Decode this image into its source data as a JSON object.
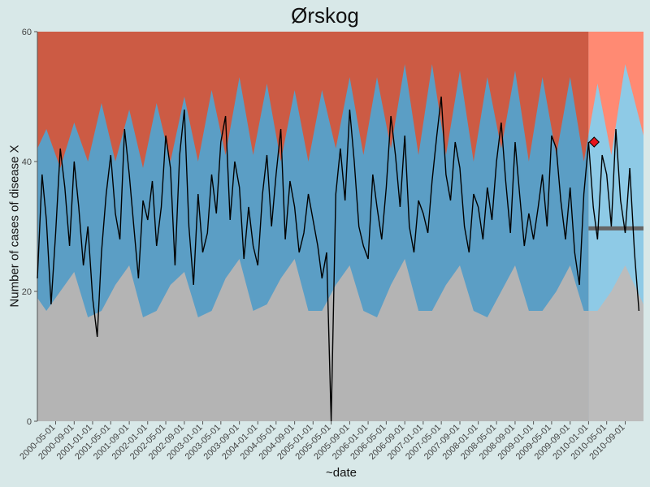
{
  "chart_data": {
    "type": "line",
    "title": "Ørskog",
    "xlabel": "~date",
    "ylabel": "Number of cases of disease X",
    "ylim": [
      0,
      60
    ],
    "xlim": [
      "2000-01-01",
      "2010-12-31"
    ],
    "y_ticks": [
      0,
      20,
      40,
      60
    ],
    "x_ticks": [
      "2000-05-01",
      "2000-09-01",
      "2001-01-01",
      "2001-05-01",
      "2001-09-01",
      "2002-01-01",
      "2002-05-01",
      "2002-09-01",
      "2003-01-01",
      "2003-05-01",
      "2003-09-01",
      "2004-01-01",
      "2004-05-01",
      "2004-09-01",
      "2005-01-01",
      "2005-05-01",
      "2005-09-01",
      "2006-01-01",
      "2006-05-01",
      "2006-09-01",
      "2007-01-01",
      "2007-05-01",
      "2007-09-01",
      "2008-01-01",
      "2008-05-01",
      "2008-09-01",
      "2009-01-01",
      "2009-05-01",
      "2009-09-01",
      "2010-01-01",
      "2010-05-01",
      "2010-09-01"
    ],
    "background_regions": {
      "baseline_period": {
        "start": "2000-01-01",
        "end": "2009-12-31"
      },
      "forecast_period": {
        "start": "2010-01-01",
        "end": "2010-12-31"
      }
    },
    "threshold_bands": {
      "low_upper": {
        "x": [
          "2000-01-01",
          "2000-03-01",
          "2000-06-01",
          "2000-09-01",
          "2000-12-01",
          "2001-03-01",
          "2001-06-01",
          "2001-09-01",
          "2001-12-01",
          "2002-03-01",
          "2002-06-01",
          "2002-09-01",
          "2002-12-01",
          "2003-03-01",
          "2003-06-01",
          "2003-09-01",
          "2003-12-01",
          "2004-03-01",
          "2004-06-01",
          "2004-09-01",
          "2004-12-01",
          "2005-03-01",
          "2005-06-01",
          "2005-09-01",
          "2005-12-01",
          "2006-03-01",
          "2006-06-01",
          "2006-09-01",
          "2006-12-01",
          "2007-03-01",
          "2007-06-01",
          "2007-09-01",
          "2007-12-01",
          "2008-03-01",
          "2008-06-01",
          "2008-09-01",
          "2008-12-01",
          "2009-03-01",
          "2009-06-01",
          "2009-09-01",
          "2009-12-01",
          "2010-03-01",
          "2010-06-01",
          "2010-09-01",
          "2010-12-31"
        ],
        "y": [
          19,
          17,
          20,
          23,
          16,
          17,
          21,
          24,
          16,
          17,
          21,
          23,
          16,
          17,
          22,
          25,
          17,
          18,
          22,
          25,
          17,
          17,
          21,
          24,
          17,
          16,
          21,
          25,
          17,
          17,
          21,
          24,
          17,
          16,
          20,
          24,
          17,
          17,
          20,
          24,
          17,
          17,
          20,
          24,
          18
        ]
      },
      "high_lower": {
        "x": [
          "2000-01-01",
          "2000-03-01",
          "2000-06-01",
          "2000-09-01",
          "2000-12-01",
          "2001-03-01",
          "2001-06-01",
          "2001-09-01",
          "2001-12-01",
          "2002-03-01",
          "2002-06-01",
          "2002-09-01",
          "2002-12-01",
          "2003-03-01",
          "2003-06-01",
          "2003-09-01",
          "2003-12-01",
          "2004-03-01",
          "2004-06-01",
          "2004-09-01",
          "2004-12-01",
          "2005-03-01",
          "2005-06-01",
          "2005-09-01",
          "2005-12-01",
          "2006-03-01",
          "2006-06-01",
          "2006-09-01",
          "2006-12-01",
          "2007-03-01",
          "2007-06-01",
          "2007-09-01",
          "2007-12-01",
          "2008-03-01",
          "2008-06-01",
          "2008-09-01",
          "2008-12-01",
          "2009-03-01",
          "2009-06-01",
          "2009-09-01",
          "2009-12-01",
          "2010-03-01",
          "2010-06-01",
          "2010-09-01",
          "2010-12-31"
        ],
        "y": [
          42,
          45,
          39,
          46,
          40,
          49,
          40,
          48,
          39,
          49,
          40,
          50,
          40,
          51,
          41,
          53,
          41,
          52,
          40,
          51,
          40,
          51,
          42,
          53,
          41,
          53,
          42,
          55,
          41,
          55,
          41,
          54,
          40,
          53,
          42,
          54,
          40,
          53,
          41,
          53,
          40,
          52,
          41,
          55,
          44
        ]
      }
    },
    "series": [
      {
        "x": [
          "2000-01-01",
          "2000-02-01",
          "2000-03-01",
          "2000-04-01",
          "2000-05-01",
          "2000-06-01",
          "2000-07-01",
          "2000-08-01",
          "2000-09-01",
          "2000-10-01",
          "2000-11-01",
          "2000-12-01",
          "2001-01-01",
          "2001-02-01",
          "2001-03-01",
          "2001-04-01",
          "2001-05-01",
          "2001-06-01",
          "2001-07-01",
          "2001-08-01",
          "2001-09-01",
          "2001-10-01",
          "2001-11-01",
          "2001-12-01",
          "2002-01-01",
          "2002-02-01",
          "2002-03-01",
          "2002-04-01",
          "2002-05-01",
          "2002-06-01",
          "2002-07-01",
          "2002-08-01",
          "2002-09-01",
          "2002-10-01",
          "2002-11-01",
          "2002-12-01",
          "2003-01-01",
          "2003-02-01",
          "2003-03-01",
          "2003-04-01",
          "2003-05-01",
          "2003-06-01",
          "2003-07-01",
          "2003-08-01",
          "2003-09-01",
          "2003-10-01",
          "2003-11-01",
          "2003-12-01",
          "2004-01-01",
          "2004-02-01",
          "2004-03-01",
          "2004-04-01",
          "2004-05-01",
          "2004-06-01",
          "2004-07-01",
          "2004-08-01",
          "2004-09-01",
          "2004-10-01",
          "2004-11-01",
          "2004-12-01",
          "2005-01-01",
          "2005-02-01",
          "2005-03-01",
          "2005-04-01",
          "2005-05-01",
          "2005-06-01",
          "2005-07-01",
          "2005-08-01",
          "2005-09-01",
          "2005-10-01",
          "2005-11-01",
          "2005-12-01",
          "2006-01-01",
          "2006-02-01",
          "2006-03-01",
          "2006-04-01",
          "2006-05-01",
          "2006-06-01",
          "2006-07-01",
          "2006-08-01",
          "2006-09-01",
          "2006-10-01",
          "2006-11-01",
          "2006-12-01",
          "2007-01-01",
          "2007-02-01",
          "2007-03-01",
          "2007-04-01",
          "2007-05-01",
          "2007-06-01",
          "2007-07-01",
          "2007-08-01",
          "2007-09-01",
          "2007-10-01",
          "2007-11-01",
          "2007-12-01",
          "2008-01-01",
          "2008-02-01",
          "2008-03-01",
          "2008-04-01",
          "2008-05-01",
          "2008-06-01",
          "2008-07-01",
          "2008-08-01",
          "2008-09-01",
          "2008-10-01",
          "2008-11-01",
          "2008-12-01",
          "2009-01-01",
          "2009-02-01",
          "2009-03-01",
          "2009-04-01",
          "2009-05-01",
          "2009-06-01",
          "2009-07-01",
          "2009-08-01",
          "2009-09-01",
          "2009-10-01",
          "2009-11-01",
          "2009-12-01",
          "2010-01-01",
          "2010-02-01",
          "2010-03-01",
          "2010-04-01",
          "2010-05-01",
          "2010-06-01",
          "2010-07-01",
          "2010-08-01",
          "2010-09-01",
          "2010-10-01",
          "2010-11-01",
          "2010-12-01"
        ],
        "y": [
          22,
          38,
          31,
          18,
          29,
          42,
          36,
          27,
          40,
          33,
          24,
          30,
          19,
          13,
          26,
          35,
          41,
          32,
          28,
          45,
          38,
          30,
          22,
          34,
          31,
          37,
          27,
          33,
          44,
          39,
          24,
          41,
          48,
          30,
          21,
          35,
          26,
          29,
          38,
          32,
          43,
          47,
          31,
          40,
          36,
          25,
          33,
          27,
          24,
          35,
          41,
          30,
          38,
          45,
          28,
          37,
          33,
          26,
          29,
          35,
          31,
          27,
          22,
          26,
          0,
          35,
          42,
          34,
          48,
          40,
          30,
          27,
          25,
          38,
          33,
          28,
          36,
          47,
          41,
          33,
          44,
          30,
          26,
          34,
          32,
          29,
          37,
          44,
          50,
          38,
          34,
          43,
          39,
          30,
          26,
          35,
          33,
          28,
          36,
          31,
          40,
          46,
          37,
          29,
          43,
          35,
          27,
          32,
          28,
          33,
          38,
          30,
          44,
          42,
          34,
          28,
          36,
          26,
          21,
          35,
          43,
          33,
          28,
          41,
          38,
          30,
          45,
          34,
          29,
          39,
          26,
          17
        ]
      }
    ],
    "points": [
      {
        "x": "2010-02-07",
        "y": 43
      }
    ],
    "forecast_line": {
      "x": [
        "2010-01-01",
        "2010-12-31"
      ],
      "y": [
        29.7,
        29.7
      ]
    }
  }
}
